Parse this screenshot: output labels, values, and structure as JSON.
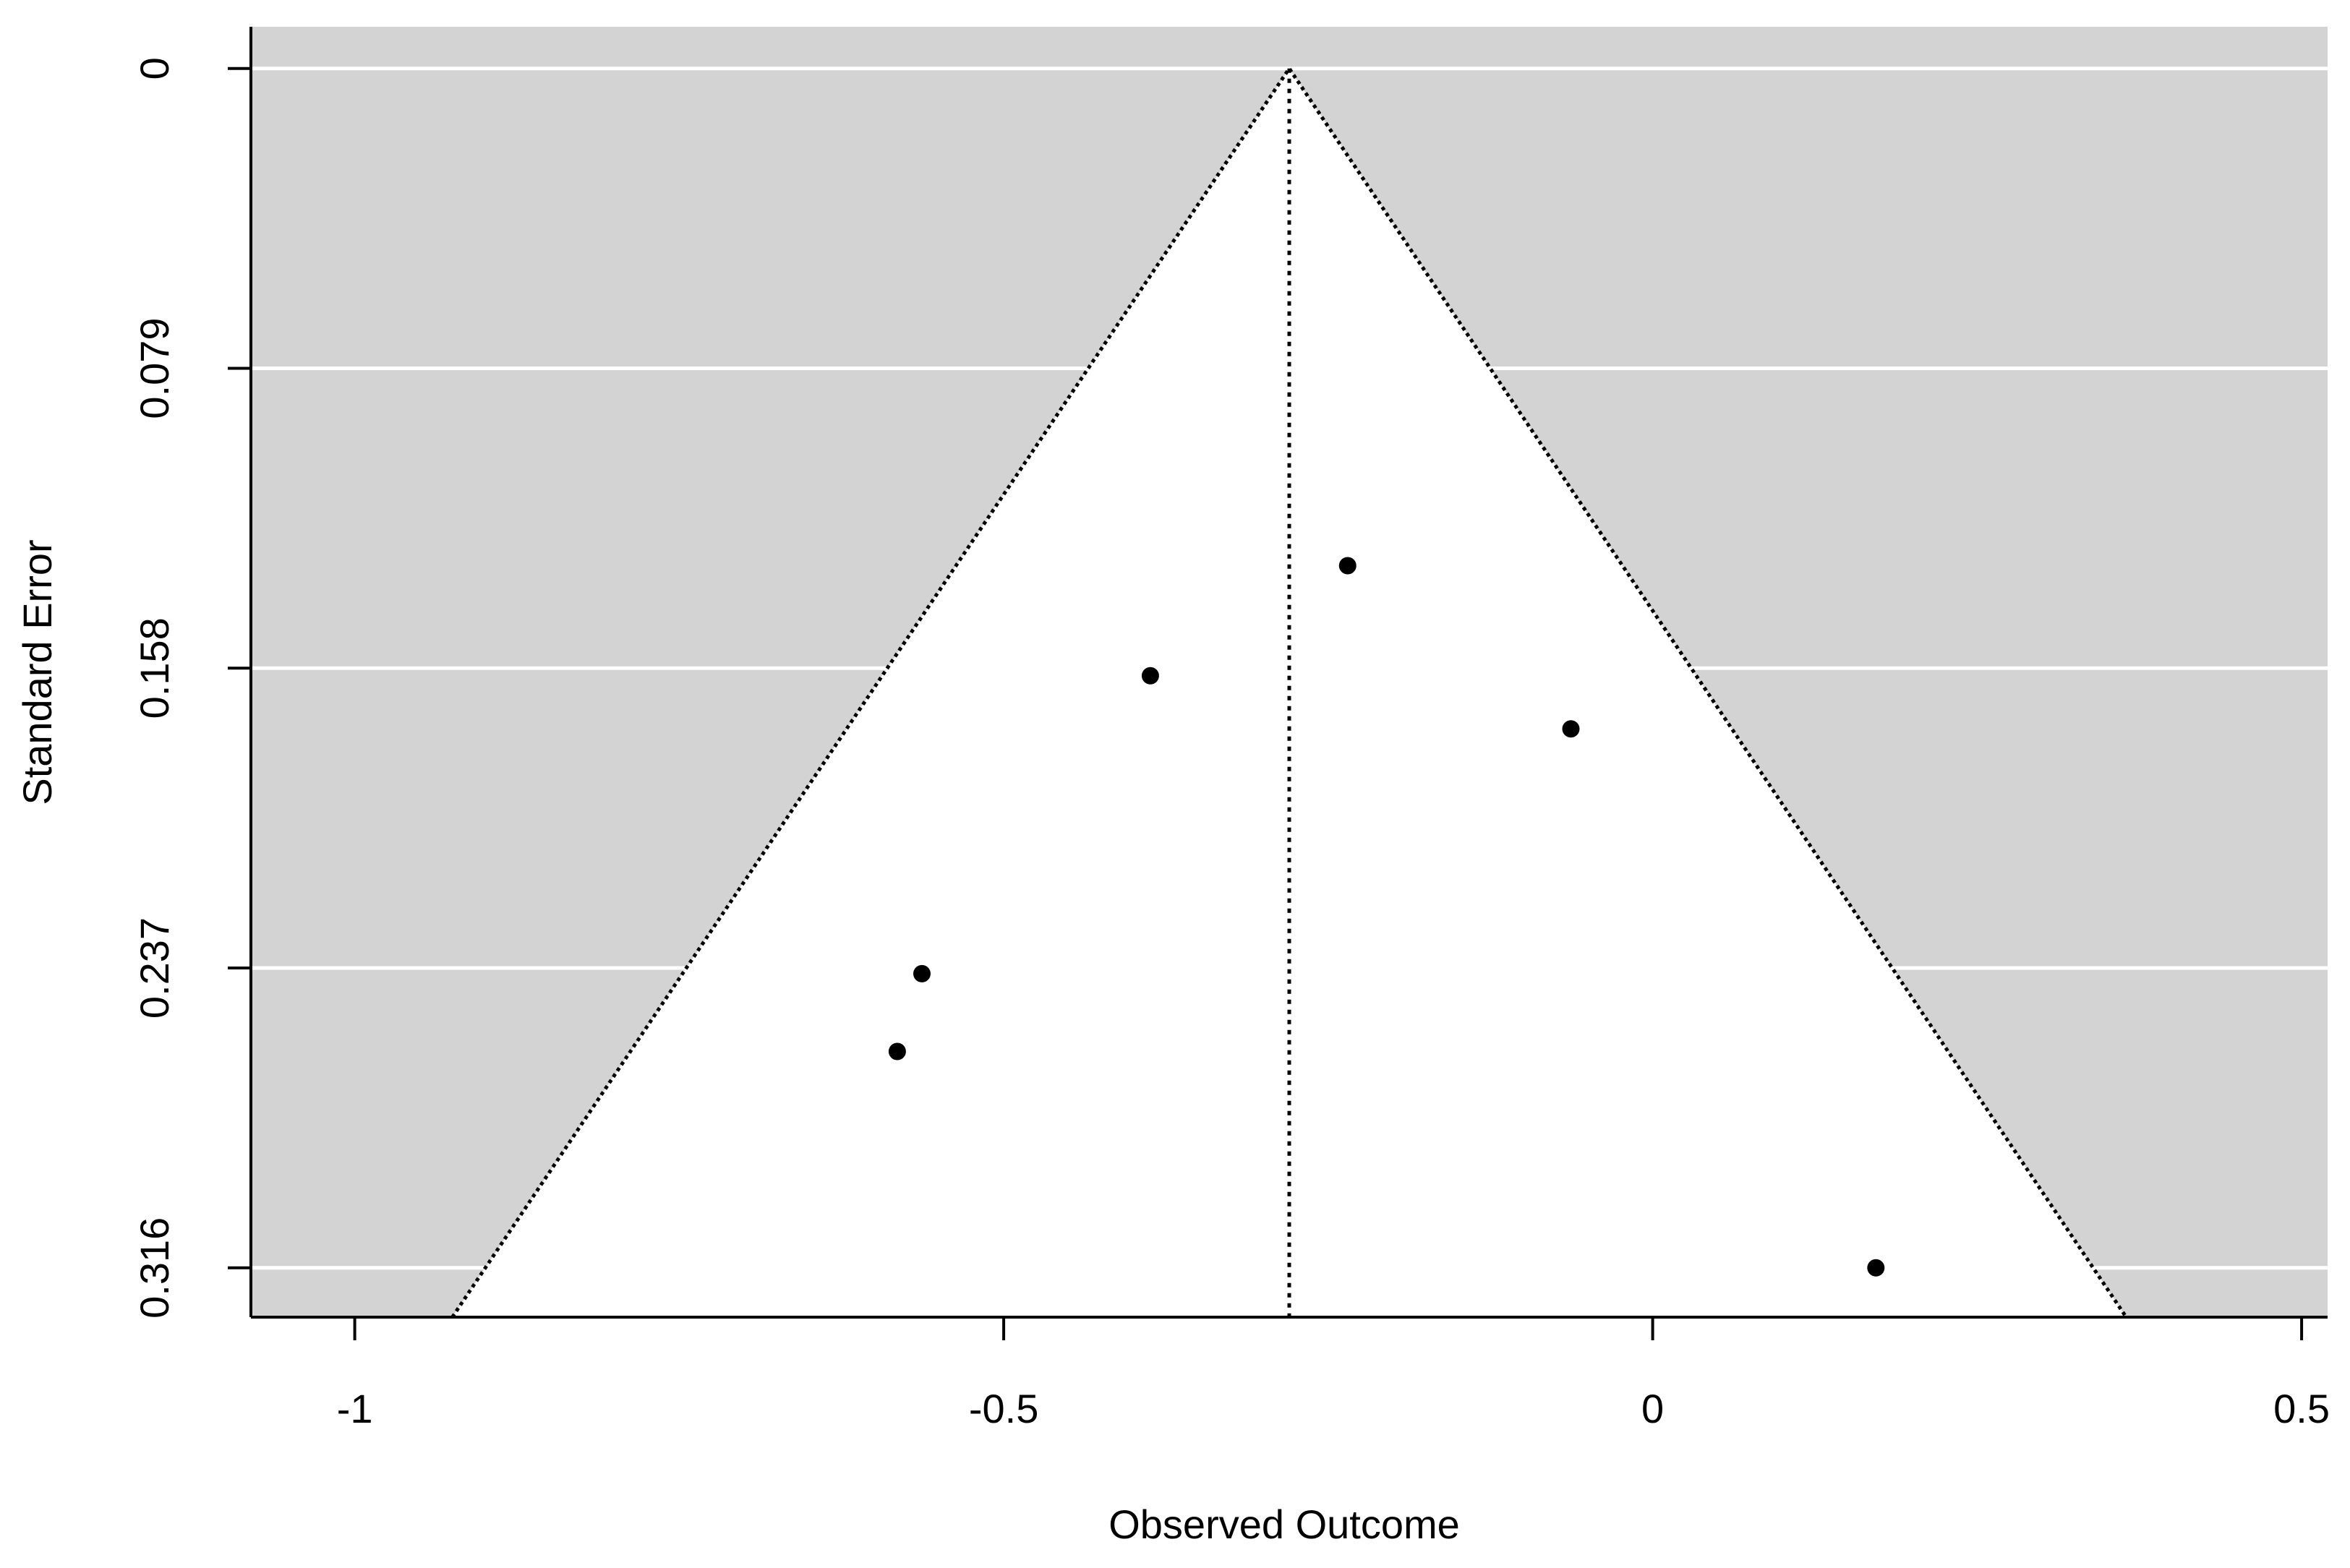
{
  "chart_data": {
    "type": "funnel",
    "x_label": "Observed Outcome",
    "y_label": "Standard Error",
    "x": [
      -0.235,
      -0.387,
      -0.063,
      -0.563,
      -0.582,
      0.172
    ],
    "values": [
      0.131,
      0.16,
      0.174,
      0.2385,
      0.259,
      0.316
    ],
    "color": "#000000",
    "funnel": {
      "center": -0.28,
      "z": 1.96
    },
    "xlim": [
      -1.08,
      0.52
    ],
    "xticks": [
      -1,
      -0.5,
      0,
      0.5
    ],
    "ylim": [
      -0.011,
      0.329
    ],
    "yticks": [
      0,
      0.079,
      0.158,
      0.237,
      0.316
    ],
    "y_reversed": true,
    "grid": true
  }
}
